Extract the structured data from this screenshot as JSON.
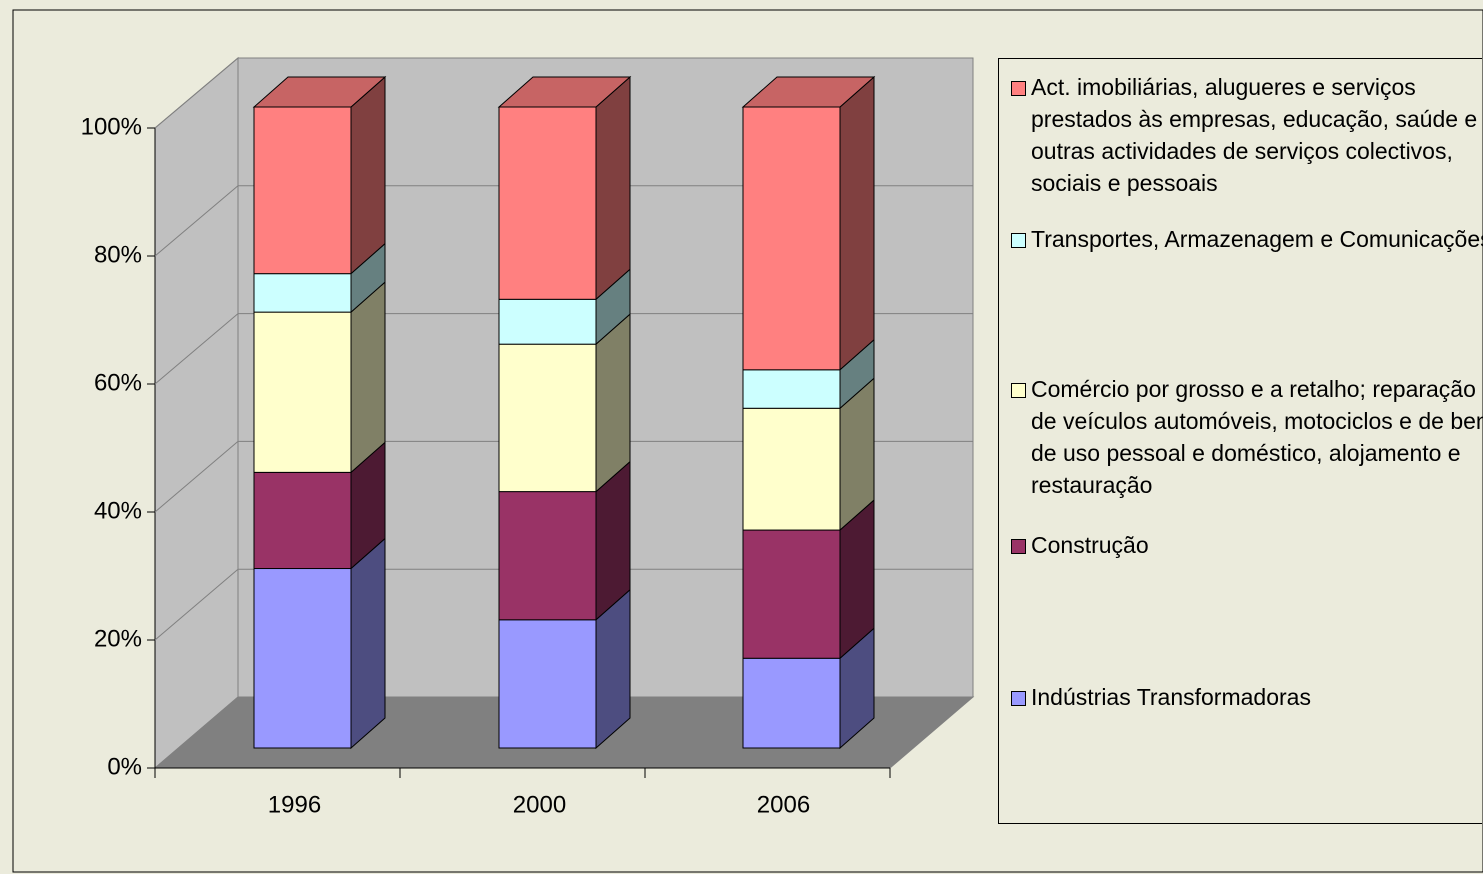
{
  "chart_data": {
    "type": "bar3d_stacked",
    "categories": [
      "1996",
      "2000",
      "2006"
    ],
    "series": [
      {
        "name": "Indústrias Transformadoras",
        "color": "#9999ff",
        "values": [
          28,
          20,
          14
        ]
      },
      {
        "name": "Construção",
        "color": "#993366",
        "values": [
          15,
          20,
          20
        ]
      },
      {
        "name": "Comércio por grosso e a retalho; reparação de veículos automóveis, motociclos e de bens de uso pessoal e doméstico, alojamento e restauração",
        "color": "#ffffcc",
        "values": [
          25,
          23,
          19
        ]
      },
      {
        "name": "Transportes, Armazenagem e Comunicações",
        "color": "#ccffff",
        "values": [
          6,
          7,
          6
        ]
      },
      {
        "name": "Act. imobiliárias, alugueres e serviços prestados às empresas, educação, saúde e outras actividades de serviços colectivos, sociais e pessoais",
        "color": "#ff8080",
        "values": [
          26,
          30,
          41
        ]
      }
    ],
    "ylim": [
      0,
      100
    ],
    "yticks": [
      {
        "value": 0,
        "label": "0%"
      },
      {
        "value": 20,
        "label": "20%"
      },
      {
        "value": 40,
        "label": "40%"
      },
      {
        "value": 60,
        "label": "60%"
      },
      {
        "value": 80,
        "label": "80%"
      },
      {
        "value": 100,
        "label": "100%"
      }
    ],
    "grid": true,
    "legend": "right"
  }
}
